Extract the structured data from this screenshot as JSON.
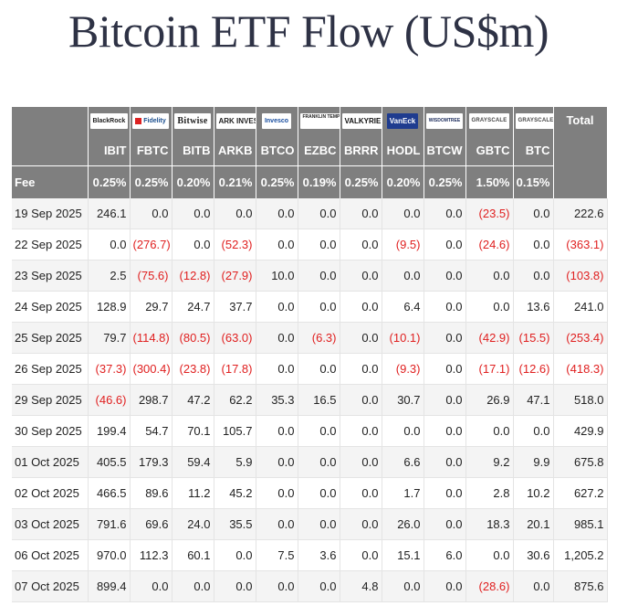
{
  "title": "Bitcoin ETF Flow (US$m)",
  "issuers": [
    {
      "logo_text": "BlackRock",
      "ticker": "IBIT",
      "fee": "0.25%"
    },
    {
      "logo_text": "Fidelity",
      "ticker": "FBTC",
      "fee": "0.25%"
    },
    {
      "logo_text": "Bitwise",
      "ticker": "BITB",
      "fee": "0.20%"
    },
    {
      "logo_text": "ARK INVEST",
      "ticker": "ARKB",
      "fee": "0.21%"
    },
    {
      "logo_text": "Invesco",
      "ticker": "BTCO",
      "fee": "0.25%"
    },
    {
      "logo_text": "FRANKLIN TEMPLETON",
      "ticker": "EZBC",
      "fee": "0.19%"
    },
    {
      "logo_text": "VALKYRIE",
      "ticker": "BRRR",
      "fee": "0.25%"
    },
    {
      "logo_text": "VanEck",
      "ticker": "HODL",
      "fee": "0.20%"
    },
    {
      "logo_text": "WISDOMTREE",
      "ticker": "BTCW",
      "fee": "0.25%"
    },
    {
      "logo_text": "GRAYSCALE",
      "ticker": "GBTC",
      "fee": "1.50%"
    },
    {
      "logo_text": "GRAYSCALE",
      "ticker": "BTC",
      "fee": "0.15%"
    }
  ],
  "total_header": "Total",
  "fee_label": "Fee",
  "rows": [
    {
      "date": "19 Sep 2025",
      "values": [
        "246.1",
        "0.0",
        "0.0",
        "0.0",
        "0.0",
        "0.0",
        "0.0",
        "0.0",
        "0.0",
        "(23.5)",
        "0.0"
      ],
      "total": "222.6"
    },
    {
      "date": "22 Sep 2025",
      "values": [
        "0.0",
        "(276.7)",
        "0.0",
        "(52.3)",
        "0.0",
        "0.0",
        "0.0",
        "(9.5)",
        "0.0",
        "(24.6)",
        "0.0"
      ],
      "total": "(363.1)"
    },
    {
      "date": "23 Sep 2025",
      "values": [
        "2.5",
        "(75.6)",
        "(12.8)",
        "(27.9)",
        "10.0",
        "0.0",
        "0.0",
        "0.0",
        "0.0",
        "0.0",
        "0.0"
      ],
      "total": "(103.8)"
    },
    {
      "date": "24 Sep 2025",
      "values": [
        "128.9",
        "29.7",
        "24.7",
        "37.7",
        "0.0",
        "0.0",
        "0.0",
        "6.4",
        "0.0",
        "0.0",
        "13.6"
      ],
      "total": "241.0"
    },
    {
      "date": "25 Sep 2025",
      "values": [
        "79.7",
        "(114.8)",
        "(80.5)",
        "(63.0)",
        "0.0",
        "(6.3)",
        "0.0",
        "(10.1)",
        "0.0",
        "(42.9)",
        "(15.5)"
      ],
      "total": "(253.4)"
    },
    {
      "date": "26 Sep 2025",
      "values": [
        "(37.3)",
        "(300.4)",
        "(23.8)",
        "(17.8)",
        "0.0",
        "0.0",
        "0.0",
        "(9.3)",
        "0.0",
        "(17.1)",
        "(12.6)"
      ],
      "total": "(418.3)"
    },
    {
      "date": "29 Sep 2025",
      "values": [
        "(46.6)",
        "298.7",
        "47.2",
        "62.2",
        "35.3",
        "16.5",
        "0.0",
        "30.7",
        "0.0",
        "26.9",
        "47.1"
      ],
      "total": "518.0"
    },
    {
      "date": "30 Sep 2025",
      "values": [
        "199.4",
        "54.7",
        "70.1",
        "105.7",
        "0.0",
        "0.0",
        "0.0",
        "0.0",
        "0.0",
        "0.0",
        "0.0"
      ],
      "total": "429.9"
    },
    {
      "date": "01 Oct 2025",
      "values": [
        "405.5",
        "179.3",
        "59.4",
        "5.9",
        "0.0",
        "0.0",
        "0.0",
        "6.6",
        "0.0",
        "9.2",
        "9.9"
      ],
      "total": "675.8"
    },
    {
      "date": "02 Oct 2025",
      "values": [
        "466.5",
        "89.6",
        "11.2",
        "45.2",
        "0.0",
        "0.0",
        "0.0",
        "1.7",
        "0.0",
        "2.8",
        "10.2"
      ],
      "total": "627.2"
    },
    {
      "date": "03 Oct 2025",
      "values": [
        "791.6",
        "69.6",
        "24.0",
        "35.5",
        "0.0",
        "0.0",
        "0.0",
        "26.0",
        "0.0",
        "18.3",
        "20.1"
      ],
      "total": "985.1"
    },
    {
      "date": "06 Oct 2025",
      "values": [
        "970.0",
        "112.3",
        "60.1",
        "0.0",
        "7.5",
        "3.6",
        "0.0",
        "15.1",
        "6.0",
        "0.0",
        "30.6"
      ],
      "total": "1,205.2"
    },
    {
      "date": "07 Oct 2025",
      "values": [
        "899.4",
        "0.0",
        "0.0",
        "0.0",
        "0.0",
        "0.0",
        "4.8",
        "0.0",
        "0.0",
        "(28.6)",
        "0.0"
      ],
      "total": "875.6"
    }
  ],
  "colors": {
    "header_bg": "#7f7f7f",
    "negative": "#e02020",
    "title": "#2e3245"
  }
}
